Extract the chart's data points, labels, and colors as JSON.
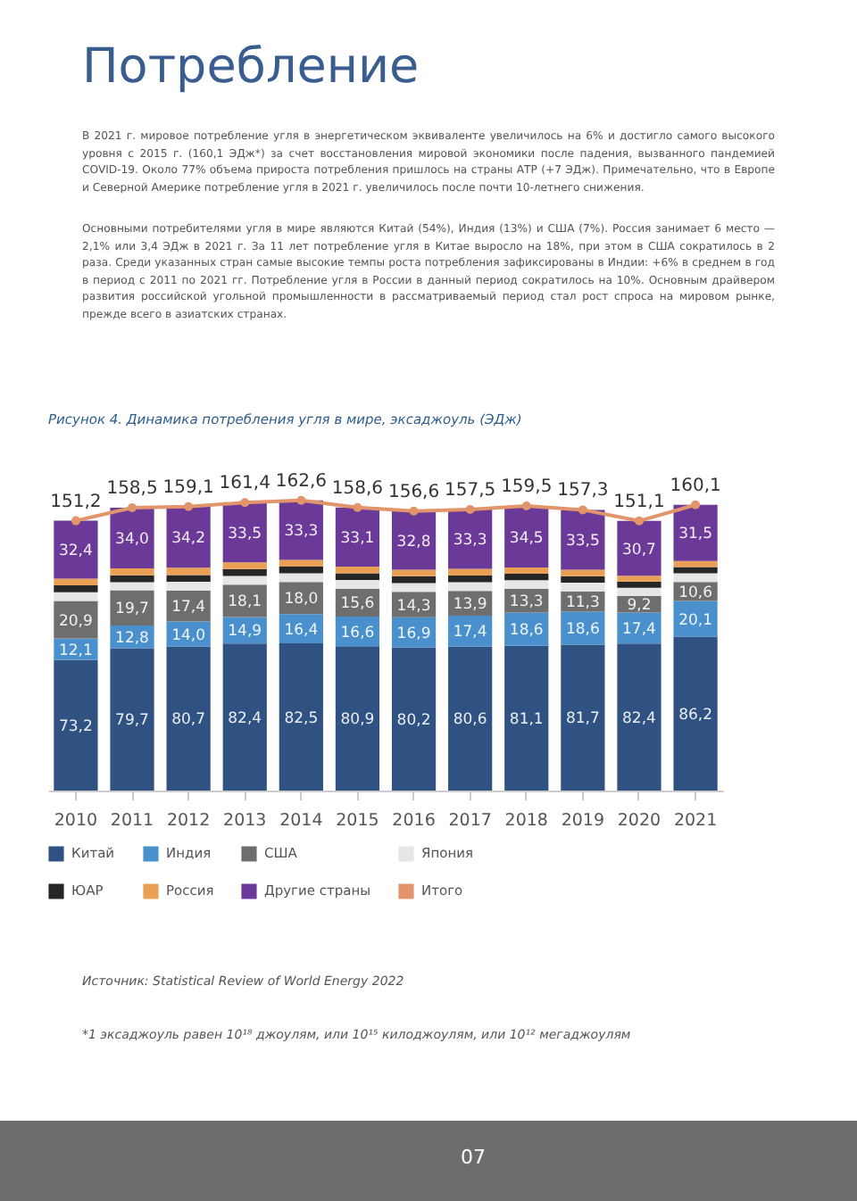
{
  "chart_data": {
    "type": "bar",
    "stacked": true,
    "title": "Рисунок 4. Динамика потребления угля в мире, эксаджоуль (ЭДж)",
    "annotations": [
      "Потребление",
      "В 2021 г. мировое потребление угля в энергетическом эквиваленте увеличилось на 6% и достигло самого высокого уровня с 2015 г. (160,1 ЭДж*) за счет восстановления мировой экономики после падения, вызванного пандемией COVID-19. Около 77% объема прироста потребления пришлось на страны АТР (+7 ЭДж). Примечательно, что в Европе и Северной Америке потребление угля в 2021 г. увеличилось после почти 10-летнего снижения.",
      "Основными потребителями угля в мире являются Китай (54%), Индия (13%) и США (7%). Россия занимает 6 место — 2,1% или 3,4 ЭДж в 2021 г. За 11 лет потребление угля в Китае выросло на 18%, при этом в США сократилось в 2 раза. Среди указанных стран самые высокие темпы роста потребления зафиксированы в Индии: +6% в среднем в год в период с 2011 по 2021 гг. Потребление угля в России в данный период сократилось на 10%. Основным драйвером развития российской угольной промышленности в рассматриваемый период стал рост спроса на мировом рынке, прежде всего в азиатских странах.",
      "Источник: Statistical Review of World Energy 2022",
      "*1 эксаджоуль равен 10¹⁸ джоулям, или 10¹⁵ килоджоулям, или 10¹² мегаджоулям",
      "07"
    ],
    "categories": [
      "2010",
      "2011",
      "2012",
      "2013",
      "2014",
      "2015",
      "2016",
      "2017",
      "2018",
      "2019",
      "2020",
      "2021"
    ],
    "legend": "bottom",
    "marker": "circle",
    "series": [
      {
        "name": "Китай",
        "color": "#2f5283",
        "values": [
          73.2,
          79.7,
          80.7,
          82.4,
          82.5,
          80.9,
          80.2,
          80.6,
          81.1,
          81.7,
          82.4,
          86.2
        ],
        "value_labels": [
          "73,2",
          "79,7",
          "80,7",
          "82,4",
          "82,5",
          "80,9",
          "80,2",
          "80,6",
          "81,1",
          "81,7",
          "82,4",
          "86,2"
        ]
      },
      {
        "name": "Индия",
        "color": "#4a90cc",
        "values": [
          12.1,
          12.8,
          14.0,
          14.9,
          16.4,
          16.6,
          16.9,
          17.4,
          18.6,
          18.6,
          17.4,
          20.1
        ],
        "value_labels": [
          "12,1",
          "12,8",
          "14,0",
          "14,9",
          "16,4",
          "16,6",
          "16,9",
          "17,4",
          "18,6",
          "18,6",
          "17,4",
          "20,1"
        ]
      },
      {
        "name": "США",
        "color": "#6e6e6e",
        "values": [
          20.9,
          19.7,
          17.4,
          18.1,
          18.0,
          15.6,
          14.3,
          13.9,
          13.3,
          11.3,
          9.2,
          10.6
        ],
        "value_labels": [
          "20,9",
          "19,7",
          "17,4",
          "18,1",
          "18,0",
          "15,6",
          "14,3",
          "13,9",
          "13,3",
          "11,3",
          "9,2",
          "10,6"
        ]
      },
      {
        "name": "Япония",
        "color": "#e6e6e6",
        "values": [
          4.9,
          4.6,
          4.9,
          4.9,
          4.9,
          4.9,
          4.9,
          4.9,
          4.9,
          4.9,
          4.6,
          4.8
        ]
      },
      {
        "name": "ЮАР",
        "color": "#262626",
        "values": [
          3.9,
          3.8,
          3.7,
          3.8,
          3.7,
          3.8,
          3.8,
          3.7,
          3.6,
          3.6,
          3.5,
          3.5
        ]
      },
      {
        "name": "Россия",
        "color": "#e9a055",
        "values": [
          3.8,
          3.9,
          4.2,
          3.8,
          3.8,
          3.7,
          3.7,
          3.7,
          3.5,
          3.7,
          3.3,
          3.4
        ]
      },
      {
        "name": "Другие страны",
        "color": "#6b3a99",
        "values": [
          32.4,
          34.0,
          34.2,
          33.5,
          33.3,
          33.1,
          32.8,
          33.3,
          34.5,
          33.5,
          30.7,
          31.5
        ],
        "value_labels": [
          "32,4",
          "34,0",
          "34,2",
          "33,5",
          "33,3",
          "33,1",
          "32,8",
          "33,3",
          "34,5",
          "33,5",
          "30,7",
          "31,5"
        ]
      },
      {
        "name": "Итого",
        "type": "line",
        "color": "#e2956a",
        "values": [
          151.2,
          158.5,
          159.1,
          161.4,
          162.6,
          158.6,
          156.6,
          157.5,
          159.5,
          157.3,
          151.1,
          160.1
        ],
        "value_labels": [
          "151,2",
          "158,5",
          "159,1",
          "161,4",
          "162,6",
          "158,6",
          "156,6",
          "157,5",
          "159,5",
          "157,3",
          "151,1",
          "160,1"
        ]
      }
    ]
  }
}
